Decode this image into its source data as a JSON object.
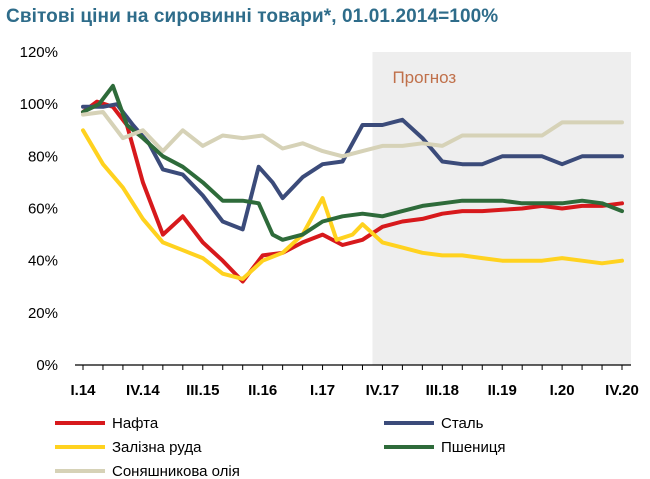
{
  "chart_data": {
    "type": "line",
    "title": "Світові ціни на сировинні товари*, 01.01.2014=100%",
    "ylim": [
      0,
      120
    ],
    "yticks": [
      "0%",
      "20%",
      "40%",
      "60%",
      "80%",
      "100%",
      "120%"
    ],
    "ytick_values": [
      0,
      20,
      40,
      60,
      80,
      100,
      120
    ],
    "x_count": 28,
    "xtick_labels": [
      {
        "i": 0,
        "label": "I.14"
      },
      {
        "i": 3,
        "label": "IV.14"
      },
      {
        "i": 6,
        "label": "III.15"
      },
      {
        "i": 9,
        "label": "II.16"
      },
      {
        "i": 12,
        "label": "I.17"
      },
      {
        "i": 15,
        "label": "IV.17"
      },
      {
        "i": 18,
        "label": "III.18"
      },
      {
        "i": 21,
        "label": "II.19"
      },
      {
        "i": 24,
        "label": "I.20"
      },
      {
        "i": 27,
        "label": "IV.20"
      }
    ],
    "forecast_start_index": 14.5,
    "forecast_label": "Прогноз",
    "series": [
      {
        "name": "Нафта",
        "color": "#d7191c",
        "values": [
          [
            0,
            97
          ],
          [
            0.7,
            101
          ],
          [
            1.5,
            99
          ],
          [
            2.2,
            92
          ],
          [
            3,
            70
          ],
          [
            4,
            50
          ],
          [
            5,
            57
          ],
          [
            6,
            47
          ],
          [
            7,
            40
          ],
          [
            8,
            32
          ],
          [
            9,
            42
          ],
          [
            10,
            43
          ],
          [
            11,
            47
          ],
          [
            12,
            50
          ],
          [
            13,
            46
          ],
          [
            14,
            48
          ],
          [
            15,
            53
          ],
          [
            16,
            55
          ],
          [
            17,
            56
          ],
          [
            18,
            58
          ],
          [
            19,
            59
          ],
          [
            20,
            59
          ],
          [
            21,
            59.5
          ],
          [
            22,
            60
          ],
          [
            23,
            61
          ],
          [
            24,
            60
          ],
          [
            25,
            61
          ],
          [
            26,
            61
          ],
          [
            27,
            62
          ]
        ]
      },
      {
        "name": "Сталь",
        "color": "#3b4b7a",
        "values": [
          [
            0,
            99
          ],
          [
            1,
            99
          ],
          [
            1.7,
            100
          ],
          [
            2.5,
            92
          ],
          [
            3.3,
            85
          ],
          [
            4,
            75
          ],
          [
            5,
            73
          ],
          [
            6,
            65
          ],
          [
            7,
            55
          ],
          [
            8,
            52
          ],
          [
            8.8,
            76
          ],
          [
            9.5,
            70
          ],
          [
            10,
            64
          ],
          [
            11,
            72
          ],
          [
            12,
            77
          ],
          [
            13,
            78
          ],
          [
            14,
            92
          ],
          [
            15,
            92
          ],
          [
            16,
            94
          ],
          [
            17,
            87
          ],
          [
            18,
            78
          ],
          [
            19,
            77
          ],
          [
            20,
            77
          ],
          [
            21,
            80
          ],
          [
            22,
            80
          ],
          [
            23,
            80
          ],
          [
            24,
            77
          ],
          [
            25,
            80
          ],
          [
            26,
            80
          ],
          [
            27,
            80
          ]
        ]
      },
      {
        "name": "Залізна руда",
        "color": "#ffd21f",
        "values": [
          [
            0,
            90
          ],
          [
            1,
            77
          ],
          [
            2,
            68
          ],
          [
            3,
            56
          ],
          [
            4,
            47
          ],
          [
            5,
            44
          ],
          [
            6,
            41
          ],
          [
            7,
            35
          ],
          [
            8,
            33
          ],
          [
            9,
            40
          ],
          [
            10,
            43
          ],
          [
            11,
            50
          ],
          [
            12,
            64
          ],
          [
            12.7,
            48
          ],
          [
            13.5,
            50
          ],
          [
            14,
            54
          ],
          [
            15,
            47
          ],
          [
            16,
            45
          ],
          [
            17,
            43
          ],
          [
            18,
            42
          ],
          [
            19,
            42
          ],
          [
            20,
            41
          ],
          [
            21,
            40
          ],
          [
            22,
            40
          ],
          [
            23,
            40
          ],
          [
            24,
            41
          ],
          [
            25,
            40
          ],
          [
            26,
            39
          ],
          [
            27,
            40
          ]
        ]
      },
      {
        "name": "Пшениця",
        "color": "#2e6b3a",
        "values": [
          [
            0,
            97
          ],
          [
            0.8,
            100
          ],
          [
            1.5,
            107
          ],
          [
            2.2,
            92
          ],
          [
            3,
            87
          ],
          [
            4,
            80
          ],
          [
            5,
            76
          ],
          [
            6,
            70
          ],
          [
            7,
            63
          ],
          [
            8,
            63
          ],
          [
            8.8,
            62
          ],
          [
            9.5,
            50
          ],
          [
            10,
            48
          ],
          [
            11,
            50
          ],
          [
            12,
            55
          ],
          [
            13,
            57
          ],
          [
            14,
            58
          ],
          [
            15,
            57
          ],
          [
            16,
            59
          ],
          [
            17,
            61
          ],
          [
            18,
            62
          ],
          [
            19,
            63
          ],
          [
            20,
            63
          ],
          [
            21,
            63
          ],
          [
            22,
            62
          ],
          [
            23,
            62
          ],
          [
            24,
            62
          ],
          [
            25,
            63
          ],
          [
            26,
            62
          ],
          [
            27,
            59
          ]
        ]
      },
      {
        "name": "Соняшникова олія",
        "color": "#d6d2b7",
        "values": [
          [
            0,
            96
          ],
          [
            1,
            97
          ],
          [
            2,
            87
          ],
          [
            3,
            90
          ],
          [
            4,
            82
          ],
          [
            5,
            90
          ],
          [
            6,
            84
          ],
          [
            7,
            88
          ],
          [
            8,
            87
          ],
          [
            9,
            88
          ],
          [
            10,
            83
          ],
          [
            11,
            85
          ],
          [
            12,
            82
          ],
          [
            13,
            80
          ],
          [
            14,
            82
          ],
          [
            15,
            84
          ],
          [
            16,
            84
          ],
          [
            17,
            85
          ],
          [
            18,
            84
          ],
          [
            19,
            88
          ],
          [
            20,
            88
          ],
          [
            21,
            88
          ],
          [
            22,
            88
          ],
          [
            23,
            88
          ],
          [
            24,
            93
          ],
          [
            25,
            93
          ],
          [
            26,
            93
          ],
          [
            27,
            93
          ]
        ]
      }
    ]
  }
}
